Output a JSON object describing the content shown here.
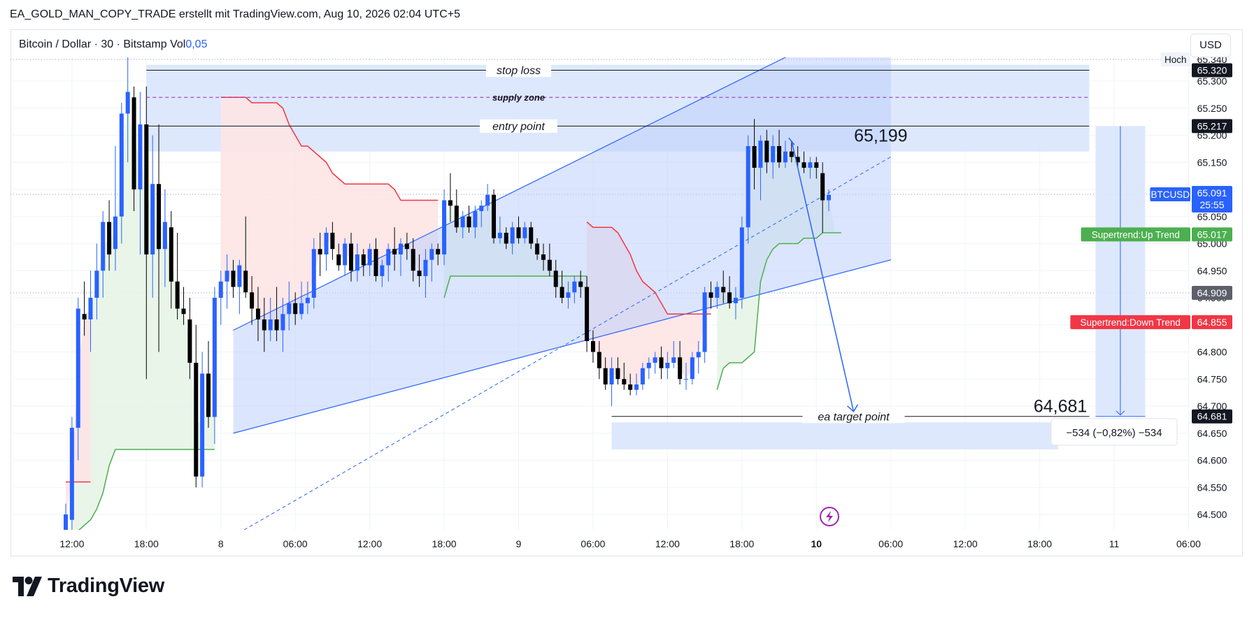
{
  "caption": "EA_GOLD_MAN_COPY_TRADE erstellt mit TradingView.com, Aug 10, 2026 02:04 UTC+5",
  "symbol": {
    "name": "Bitcoin / Dollar · 30 · Bitstamp",
    "vol_label": "Vol",
    "vol_value": "0,05"
  },
  "currency_button": "USD",
  "branding": {
    "name": "TradingView"
  },
  "colors": {
    "bull": "#2962ff",
    "bear": "#000000",
    "supertrend_up": "#4caf50",
    "supertrend_down": "#f23645",
    "channel_fill": "#bdd0fb",
    "zone_fill": "#d9e5fd",
    "up_fill": "#e7f4e7",
    "down_fill": "#fde4e4"
  },
  "chart_data": {
    "type": "candlestick",
    "symbol": "BTCUSD",
    "price_axis": {
      "ylim": [
        64.46,
        65.36
      ],
      "ticks": [
        "65.300",
        "65.250",
        "65.200",
        "65.150",
        "65.100",
        "65.050",
        "65.000",
        "64.950",
        "64.900",
        "64.850",
        "64.800",
        "64.750",
        "64.700",
        "64.650",
        "64.600",
        "64.550",
        "64.500"
      ]
    },
    "time_axis": {
      "ticks": [
        {
          "i": 1,
          "label": "12:00"
        },
        {
          "i": 13,
          "label": "18:00"
        },
        {
          "i": 25,
          "label": "8"
        },
        {
          "i": 37,
          "label": "06:00"
        },
        {
          "i": 49,
          "label": "12:00"
        },
        {
          "i": 61,
          "label": "18:00"
        },
        {
          "i": 73,
          "label": "9"
        },
        {
          "i": 85,
          "label": "06:00"
        },
        {
          "i": 97,
          "label": "12:00"
        },
        {
          "i": 109,
          "label": "18:00"
        },
        {
          "i": 121,
          "label": "10",
          "bold": true
        },
        {
          "i": 133,
          "label": "06:00"
        },
        {
          "i": 145,
          "label": "12:00"
        },
        {
          "i": 157,
          "label": "18:00"
        },
        {
          "i": 169,
          "label": "11"
        },
        {
          "i": 181,
          "label": "06:00"
        }
      ]
    },
    "candles": [
      [
        64.47,
        64.52,
        64.45,
        64.5
      ],
      [
        64.49,
        64.68,
        64.45,
        64.66
      ],
      [
        64.66,
        64.9,
        64.6,
        64.88
      ],
      [
        64.87,
        64.93,
        64.83,
        64.86
      ],
      [
        64.86,
        64.95,
        64.8,
        64.9
      ],
      [
        64.9,
        65.0,
        64.86,
        64.95
      ],
      [
        64.95,
        65.06,
        64.9,
        65.04
      ],
      [
        65.04,
        65.08,
        64.95,
        64.98
      ],
      [
        64.99,
        65.18,
        64.95,
        65.05
      ],
      [
        65.05,
        65.26,
        65.0,
        65.24
      ],
      [
        65.24,
        65.35,
        65.15,
        65.28
      ],
      [
        65.27,
        65.29,
        65.06,
        65.1
      ],
      [
        65.1,
        65.28,
        64.98,
        65.22
      ],
      [
        65.22,
        65.29,
        64.75,
        64.98
      ],
      [
        64.98,
        65.2,
        64.9,
        65.11
      ],
      [
        65.11,
        65.22,
        64.8,
        64.99
      ],
      [
        64.99,
        65.1,
        64.92,
        65.04
      ],
      [
        65.03,
        65.06,
        64.88,
        64.93
      ],
      [
        64.93,
        65.02,
        64.86,
        64.88
      ],
      [
        64.88,
        64.92,
        64.85,
        64.87
      ],
      [
        64.86,
        64.9,
        64.75,
        64.78
      ],
      [
        64.78,
        64.85,
        64.55,
        64.57
      ],
      [
        64.57,
        64.8,
        64.55,
        64.76
      ],
      [
        64.76,
        64.82,
        64.66,
        64.68
      ],
      [
        64.68,
        64.92,
        64.63,
        64.9
      ],
      [
        64.9,
        64.95,
        64.85,
        64.93
      ],
      [
        64.93,
        64.98,
        64.88,
        64.95
      ],
      [
        64.95,
        64.97,
        64.9,
        64.92
      ],
      [
        64.92,
        64.97,
        64.87,
        64.96
      ],
      [
        64.95,
        65.05,
        64.9,
        64.91
      ],
      [
        64.91,
        64.94,
        64.85,
        64.88
      ],
      [
        64.88,
        64.92,
        64.82,
        64.86
      ],
      [
        64.86,
        64.9,
        64.8,
        64.84
      ],
      [
        64.84,
        64.9,
        64.82,
        64.86
      ],
      [
        64.86,
        64.92,
        64.82,
        64.84
      ],
      [
        64.84,
        64.9,
        64.8,
        64.87
      ],
      [
        64.87,
        64.93,
        64.84,
        64.89
      ],
      [
        64.89,
        64.91,
        64.85,
        64.87
      ],
      [
        64.87,
        64.93,
        64.86,
        64.89
      ],
      [
        64.89,
        64.93,
        64.87,
        64.9
      ],
      [
        64.9,
        65.01,
        64.88,
        64.99
      ],
      [
        64.99,
        65.02,
        64.94,
        64.98
      ],
      [
        64.98,
        65.03,
        64.95,
        65.02
      ],
      [
        65.02,
        65.04,
        64.97,
        64.99
      ],
      [
        64.98,
        65.0,
        64.95,
        64.96
      ],
      [
        64.96,
        65.01,
        64.94,
        65.0
      ],
      [
        65.0,
        65.02,
        64.93,
        64.95
      ],
      [
        64.95,
        65.0,
        64.93,
        64.98
      ],
      [
        64.98,
        64.99,
        64.94,
        64.96
      ],
      [
        64.96,
        65.0,
        64.94,
        64.99
      ],
      [
        64.99,
        65.01,
        64.93,
        64.94
      ],
      [
        64.94,
        64.97,
        64.92,
        64.96
      ],
      [
        64.96,
        65.0,
        64.93,
        64.99
      ],
      [
        64.99,
        65.03,
        64.95,
        64.98
      ],
      [
        64.98,
        65.01,
        64.94,
        65.0
      ],
      [
        65.0,
        65.02,
        64.97,
        64.99
      ],
      [
        64.99,
        65.01,
        64.93,
        64.95
      ],
      [
        64.95,
        64.98,
        64.92,
        64.94
      ],
      [
        64.94,
        64.99,
        64.9,
        64.97
      ],
      [
        64.97,
        65.0,
        64.93,
        64.99
      ],
      [
        64.99,
        65.0,
        64.96,
        64.98
      ],
      [
        64.98,
        65.1,
        64.96,
        65.08
      ],
      [
        65.08,
        65.13,
        65.04,
        65.07
      ],
      [
        65.07,
        65.1,
        65.02,
        65.03
      ],
      [
        65.03,
        65.06,
        65.01,
        65.05
      ],
      [
        65.05,
        65.07,
        65.02,
        65.03
      ],
      [
        65.03,
        65.07,
        65.01,
        65.06
      ],
      [
        65.06,
        65.08,
        65.03,
        65.07
      ],
      [
        65.07,
        65.11,
        65.06,
        65.09
      ],
      [
        65.09,
        65.1,
        65.0,
        65.01
      ],
      [
        65.01,
        65.05,
        65.0,
        65.02
      ],
      [
        65.02,
        65.03,
        64.99,
        65.0
      ],
      [
        65.0,
        65.04,
        64.98,
        65.03
      ],
      [
        65.03,
        65.05,
        65.0,
        65.01
      ],
      [
        65.01,
        65.04,
        65.0,
        65.03
      ],
      [
        65.03,
        65.04,
        64.99,
        65.0
      ],
      [
        65.0,
        65.01,
        64.97,
        64.98
      ],
      [
        64.98,
        65.0,
        64.95,
        64.97
      ],
      [
        64.97,
        65.0,
        64.94,
        64.95
      ],
      [
        64.95,
        64.97,
        64.9,
        64.92
      ],
      [
        64.92,
        64.95,
        64.89,
        64.9
      ],
      [
        64.9,
        64.93,
        64.88,
        64.91
      ],
      [
        64.91,
        64.94,
        64.89,
        64.93
      ],
      [
        64.93,
        64.95,
        64.9,
        64.92
      ],
      [
        64.92,
        64.94,
        64.8,
        64.82
      ],
      [
        64.82,
        64.84,
        64.78,
        64.8
      ],
      [
        64.8,
        64.82,
        64.75,
        64.77
      ],
      [
        64.77,
        64.79,
        64.73,
        64.74
      ],
      [
        64.74,
        64.79,
        64.7,
        64.77
      ],
      [
        64.77,
        64.79,
        64.74,
        64.75
      ],
      [
        64.75,
        64.78,
        64.73,
        64.74
      ],
      [
        64.74,
        64.76,
        64.72,
        64.73
      ],
      [
        64.73,
        64.76,
        64.72,
        64.74
      ],
      [
        64.74,
        64.78,
        64.73,
        64.77
      ],
      [
        64.77,
        64.79,
        64.75,
        64.78
      ],
      [
        64.78,
        64.8,
        64.76,
        64.79
      ],
      [
        64.79,
        64.81,
        64.75,
        64.77
      ],
      [
        64.77,
        64.8,
        64.75,
        64.78
      ],
      [
        64.78,
        64.82,
        64.77,
        64.79
      ],
      [
        64.79,
        64.82,
        64.74,
        64.75
      ],
      [
        64.75,
        64.78,
        64.73,
        64.75
      ],
      [
        64.75,
        64.8,
        64.74,
        64.79
      ],
      [
        64.79,
        64.82,
        64.76,
        64.8
      ],
      [
        64.8,
        64.92,
        64.78,
        64.91
      ],
      [
        64.91,
        64.93,
        64.88,
        64.9
      ],
      [
        64.9,
        64.93,
        64.88,
        64.92
      ],
      [
        64.92,
        64.95,
        64.89,
        64.91
      ],
      [
        64.91,
        64.94,
        64.88,
        64.89
      ],
      [
        64.89,
        64.92,
        64.86,
        64.9
      ],
      [
        64.9,
        65.05,
        64.88,
        65.03
      ],
      [
        65.03,
        65.2,
        65.0,
        65.18
      ],
      [
        65.18,
        65.23,
        65.1,
        65.14
      ],
      [
        65.14,
        65.2,
        65.08,
        65.19
      ],
      [
        65.19,
        65.21,
        65.13,
        65.15
      ],
      [
        65.15,
        65.2,
        65.12,
        65.18
      ],
      [
        65.18,
        65.21,
        65.14,
        65.15
      ],
      [
        65.15,
        65.19,
        65.14,
        65.17
      ],
      [
        65.17,
        65.19,
        65.15,
        65.16
      ],
      [
        65.16,
        65.18,
        65.14,
        65.15
      ],
      [
        65.15,
        65.17,
        65.13,
        65.14
      ],
      [
        65.14,
        65.16,
        65.12,
        65.15
      ],
      [
        65.15,
        65.16,
        65.12,
        65.14
      ],
      [
        65.13,
        65.15,
        65.02,
        65.08
      ],
      [
        65.08,
        65.1,
        65.06,
        65.09
      ]
    ],
    "supertrend_up": [
      {
        "from": 1,
        "to": 24,
        "values": [
          64.46,
          64.47,
          64.48,
          64.49,
          64.51,
          64.54,
          64.59,
          64.62,
          64.62,
          64.62,
          64.62,
          64.62,
          64.62,
          64.62,
          64.62,
          64.62,
          64.62,
          64.62,
          64.62,
          64.62,
          64.62,
          64.62,
          64.62,
          64.62
        ]
      },
      {
        "from": 61,
        "to": 84,
        "values": [
          64.9,
          64.94,
          64.94,
          64.94,
          64.94,
          64.94,
          64.94,
          64.94,
          64.94,
          64.94,
          64.94,
          64.94,
          64.94,
          64.94,
          64.94,
          64.94,
          64.94,
          64.94,
          64.94,
          64.94,
          64.94,
          64.94,
          64.94,
          64.94
        ]
      },
      {
        "from": 105,
        "to": 125,
        "values": [
          64.73,
          64.77,
          64.78,
          64.78,
          64.78,
          64.79,
          64.8,
          64.93,
          64.97,
          64.99,
          65.0,
          65.0,
          65.0,
          65.0,
          65.01,
          65.01,
          65.01,
          65.02,
          65.02,
          65.02,
          65.02
        ]
      }
    ],
    "supertrend_down": [
      {
        "from": 0,
        "to": 4,
        "values": [
          64.56,
          64.56,
          64.56,
          64.56,
          64.56
        ]
      },
      {
        "from": 25,
        "to": 60,
        "values": [
          65.27,
          65.27,
          65.27,
          65.27,
          65.27,
          65.26,
          65.26,
          65.26,
          65.26,
          65.26,
          65.25,
          65.22,
          65.2,
          65.18,
          65.18,
          65.17,
          65.16,
          65.15,
          65.13,
          65.12,
          65.11,
          65.11,
          65.11,
          65.11,
          65.11,
          65.11,
          65.11,
          65.11,
          65.1,
          65.08,
          65.08,
          65.08,
          65.08,
          65.08,
          65.08,
          65.08
        ]
      },
      {
        "from": 84,
        "to": 104,
        "values": [
          65.04,
          65.03,
          65.03,
          65.03,
          65.03,
          65.02,
          65.0,
          64.98,
          64.95,
          64.93,
          64.92,
          64.91,
          64.89,
          64.87,
          64.87,
          64.87,
          64.87,
          64.87,
          64.87,
          64.87,
          64.87
        ]
      }
    ],
    "channel": {
      "lower": [
        [
          27,
          64.65
        ],
        [
          133,
          64.97
        ]
      ],
      "upper": [
        [
          27,
          64.84
        ],
        [
          133,
          65.44
        ]
      ],
      "median": [
        [
          27,
          64.46
        ],
        [
          133,
          65.16
        ]
      ],
      "right_edge": 133
    },
    "zones": {
      "supply_top": 65.33,
      "supply_bottom": 65.17,
      "supply_from": 13,
      "supply_to": 165,
      "target_top": 64.67,
      "target_bottom": 64.62,
      "target_from": 88,
      "target_to": 160
    },
    "levels": [
      {
        "label": "stop loss",
        "price": 65.32,
        "from": 13,
        "to": 165,
        "style": "solid"
      },
      {
        "label": "supply zone",
        "price": 65.27,
        "from": 13,
        "to": 165,
        "style": "dash"
      },
      {
        "label": "entry point",
        "price": 65.217,
        "from": 13,
        "to": 165,
        "style": "solid"
      },
      {
        "label": "ea target point",
        "price": 64.681,
        "from": 88,
        "to": 165,
        "style": "solid"
      }
    ],
    "annotations": {
      "high_value": "65,199",
      "target_value": "64,681",
      "measure_label": "−534 (−0,82%) −534"
    },
    "projection": {
      "from": [
        117,
        65.19
      ],
      "to": [
        127,
        64.69
      ]
    },
    "price_labels": [
      {
        "text": "65.340",
        "price": 65.34,
        "kind": "plain",
        "tag": "Hoch"
      },
      {
        "text": "65.320",
        "price": 65.32,
        "kind": "black"
      },
      {
        "text": "65.217",
        "price": 65.217,
        "kind": "black"
      },
      {
        "text": "65.091",
        "sub": "25:55",
        "price": 65.091,
        "kind": "blue",
        "tag": "BTCUSD"
      },
      {
        "text": "65.017",
        "price": 65.017,
        "kind": "green",
        "tag": "Supertrend:Up Trend"
      },
      {
        "text": "64.909",
        "price": 64.909,
        "kind": "gray"
      },
      {
        "text": "64.855",
        "price": 64.855,
        "kind": "red",
        "tag": "Supertrend:Down Trend"
      },
      {
        "text": "64.681",
        "price": 64.681,
        "kind": "black"
      }
    ]
  }
}
